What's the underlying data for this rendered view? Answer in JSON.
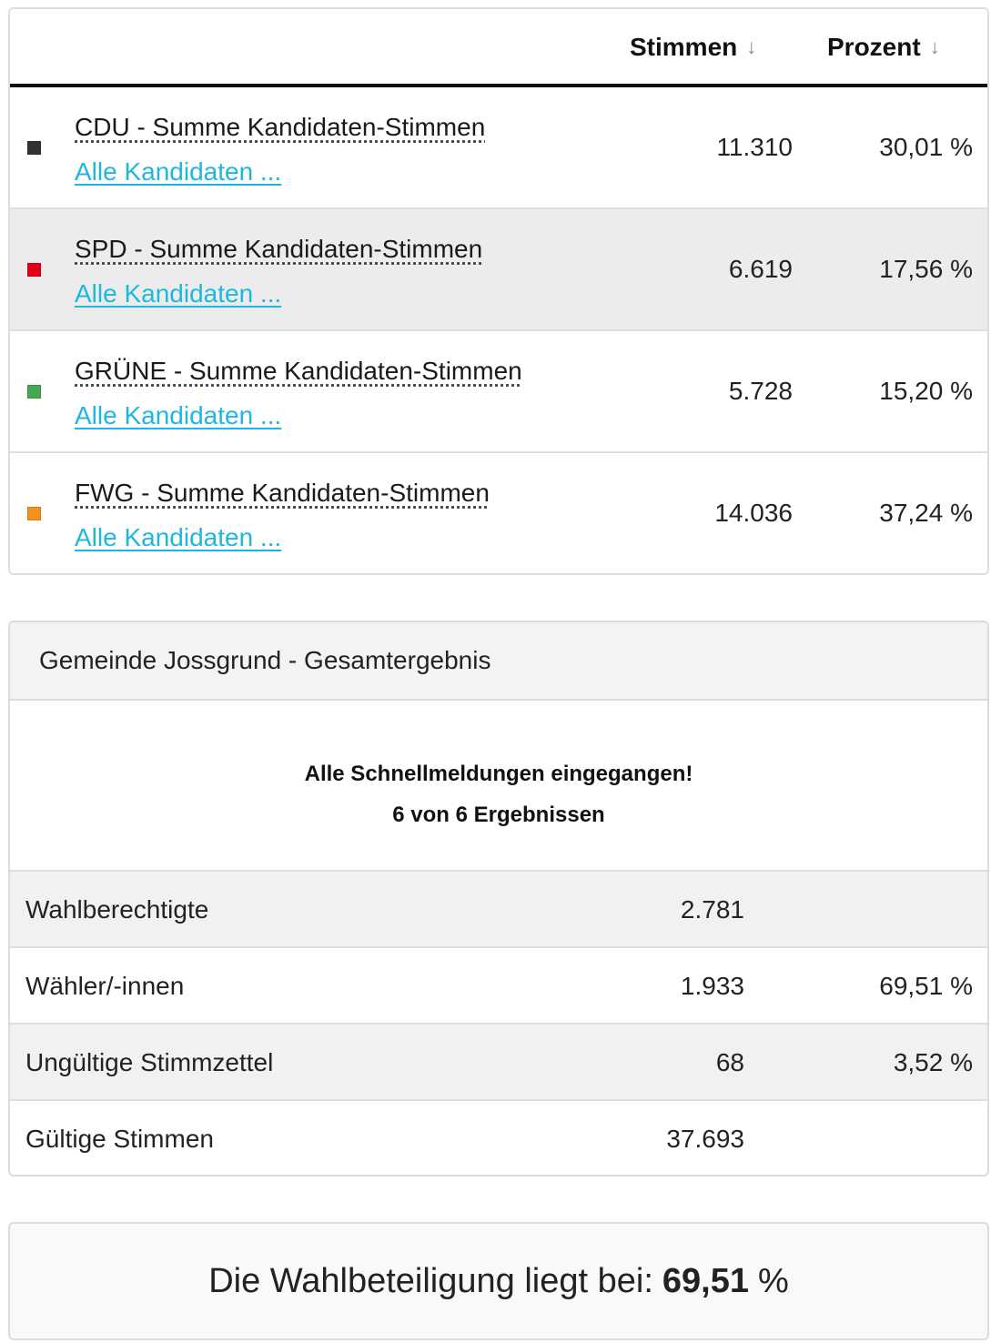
{
  "results_table": {
    "columns": {
      "votes": "Stimmen",
      "percent": "Prozent",
      "sort_icon": "↓"
    },
    "rows": [
      {
        "party": "CDU",
        "label": "CDU - Summe Kandidaten-Stimmen",
        "link": "Alle Kandidaten ...",
        "votes": "11.310",
        "percent": "30,01 %",
        "color": "#333333"
      },
      {
        "party": "SPD",
        "label": "SPD - Summe Kandidaten-Stimmen",
        "link": "Alle Kandidaten ...",
        "votes": "6.619",
        "percent": "17,56 %",
        "color": "#e3001b"
      },
      {
        "party": "GRÜNE",
        "label": "GRÜNE - Summe Kandidaten-Stimmen",
        "link": "Alle Kandidaten ...",
        "votes": "5.728",
        "percent": "15,20 %",
        "color": "#46a651"
      },
      {
        "party": "FWG",
        "label": "FWG - Summe Kandidaten-Stimmen",
        "link": "Alle Kandidaten ...",
        "votes": "14.036",
        "percent": "37,24 %",
        "color": "#f7911d"
      }
    ]
  },
  "summary": {
    "title": "Gemeinde Jossgrund - Gesamtergebnis",
    "status_line1": "Alle Schnellmeldungen eingegangen!",
    "status_line2": "6 von 6 Ergebnissen",
    "rows": [
      {
        "label": "Wahlberechtigte",
        "value": "2.781",
        "percent": ""
      },
      {
        "label": "Wähler/-innen",
        "value": "1.933",
        "percent": "69,51 %"
      },
      {
        "label": "Ungültige Stimmzettel",
        "value": "68",
        "percent": "3,52 %"
      },
      {
        "label": "Gültige Stimmen",
        "value": "37.693",
        "percent": ""
      }
    ]
  },
  "turnout": {
    "prefix": "Die Wahlbeteiligung liegt bei:",
    "value": "69,51",
    "suffix": "%"
  },
  "colors": {
    "link": "#1fb7e0",
    "alt_row": "#ececec",
    "header_rule": "#111111"
  }
}
